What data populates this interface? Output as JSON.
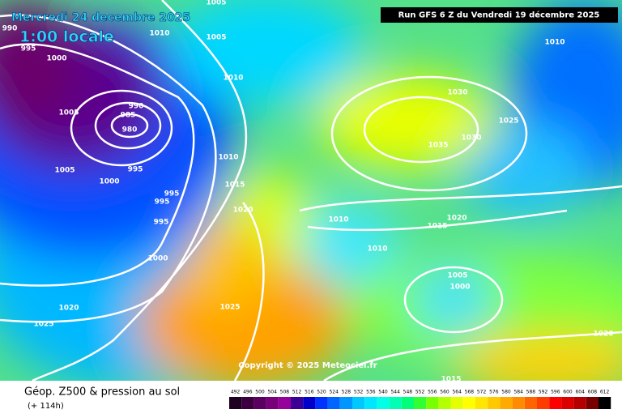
{
  "header": {
    "date": "Mercredi 24 decembre 2025",
    "time": "1:00 locale",
    "run": "Run GFS 6 Z du Vendredi 19 décembre 2025"
  },
  "copyright": "Copyright © 2025 Meteociel.fr",
  "footer": {
    "title": "Géop. Z500 & pression au sol",
    "lead": "(+ 114h)"
  },
  "pressure_labels": [
    "990",
    "995",
    "1000",
    "1005",
    "1010",
    "1005",
    "1010",
    "990",
    "985",
    "980",
    "1005",
    "1005",
    "995",
    "1000",
    "995",
    "995",
    "995",
    "1000",
    "1010",
    "1015",
    "1020",
    "1025",
    "1020",
    "1025",
    "1010",
    "1030",
    "1025",
    "1030",
    "1035",
    "1010",
    "1015",
    "1020",
    "1010",
    "1005",
    "1000",
    "1020",
    "1015"
  ],
  "scale": {
    "labels": [
      "492",
      "496",
      "500",
      "504",
      "508",
      "512",
      "516",
      "520",
      "524",
      "528",
      "532",
      "536",
      "540",
      "544",
      "548",
      "552",
      "556",
      "560",
      "564",
      "568",
      "572",
      "576",
      "580",
      "584",
      "588",
      "592",
      "596",
      "600",
      "604",
      "608",
      "612"
    ],
    "colors": [
      "#1e0020",
      "#3c0040",
      "#5a0060",
      "#780078",
      "#96009b",
      "#3c0096",
      "#0000c8",
      "#0032ff",
      "#0064ff",
      "#0096ff",
      "#00c8ff",
      "#00e6ff",
      "#00ffe6",
      "#00ffb4",
      "#00ff78",
      "#32ff32",
      "#78ff00",
      "#b4ff00",
      "#e6ff00",
      "#ffff00",
      "#ffe600",
      "#ffc800",
      "#ffaa00",
      "#ff8c00",
      "#ff6400",
      "#ff3c00",
      "#ff0000",
      "#dc0000",
      "#b40000",
      "#780000",
      "#000000"
    ]
  }
}
